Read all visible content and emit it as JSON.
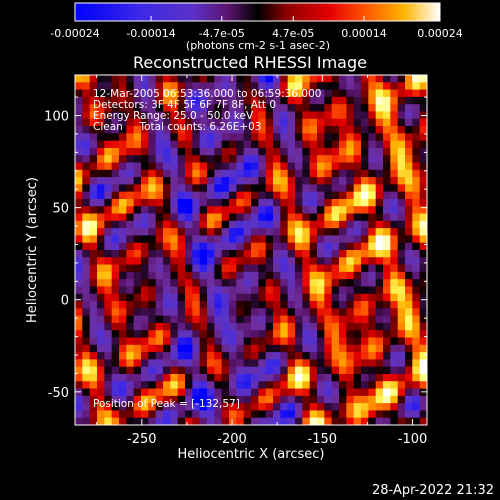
{
  "chart_data": {
    "type": "heatmap",
    "title": "Reconstructed RHESSI Image",
    "xlabel": "Heliocentric X (arcsec)",
    "ylabel": "Heliocentric Y (arcsec)",
    "xlim": [
      -287,
      -92
    ],
    "ylim": [
      -68,
      122
    ],
    "x_ticks": [
      -250,
      -200,
      -150,
      -100
    ],
    "y_ticks": [
      -50,
      0,
      50,
      100
    ],
    "colorbar": {
      "range": [
        -0.00024,
        0.00024
      ],
      "tick_values": [
        -0.00024,
        -0.00014,
        -4.7e-05,
        4.7e-05,
        0.00014,
        0.00024
      ],
      "tick_labels": [
        "-0.00024",
        "-0.00014",
        "-4.7e-05",
        "4.7e-05",
        "0.00014",
        "0.00024"
      ],
      "unit_label": "(photons cm-2 s-1 asec-2)"
    },
    "annotations": [
      "12-Mar-2005 06:53:36.000 to 06:59:36.000",
      "Detectors: 3F 4F 5F 6F 7F 8F, Att 0",
      "Energy Range: 25.0 - 50.0 keV",
      "Clean     Total counts: 6.26E+03"
    ],
    "peak_label": "Position of Peak = [-132,57]",
    "peak_position": [
      -132,
      57
    ]
  },
  "timestamp": "28-Apr-2022 21:32",
  "colors": {
    "background": "#000000",
    "text": "#ffffff",
    "colormap": [
      "#0000ff",
      "#3c28e6",
      "#5a32c8",
      "#6e2e9e",
      "#5a146e",
      "#000000",
      "#8c0000",
      "#e60000",
      "#ff5a00",
      "#ffb400",
      "#ffff64",
      "#ffffff"
    ]
  }
}
